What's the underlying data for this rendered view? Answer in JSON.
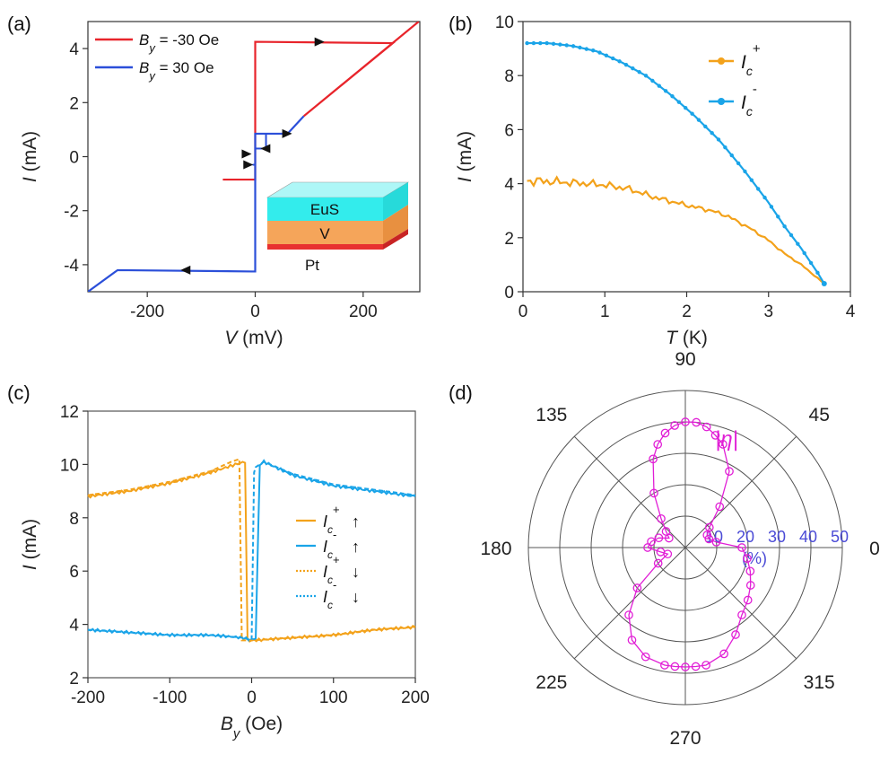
{
  "colors": {
    "red": "#e8242b",
    "blue": "#2b4fd9",
    "orange": "#f3a21b",
    "cyan": "#1aa4e8",
    "magenta": "#e11fd6",
    "polar_label": "#4b4bd6",
    "eus": "#33ecec",
    "v": "#f5a55a",
    "pt": "#e83030"
  },
  "chart_data": [
    {
      "panel": "(a)",
      "type": "line",
      "xlabel_italic": "V",
      "xlabel_rest": " (mV)",
      "ylabel": "I",
      "ylabel_unit": " (mA)",
      "xlim": [
        -310,
        305
      ],
      "ylim": [
        -5,
        5
      ],
      "xticks": [
        -200,
        0,
        200
      ],
      "yticks": [
        -4,
        -2,
        0,
        2,
        4
      ],
      "legend": [
        {
          "sym": "B",
          "sub": "y",
          "rest": " = -30 Oe"
        },
        {
          "sym": "B",
          "sub": "y",
          "rest": " = 30 Oe"
        }
      ],
      "series": [
        {
          "name": "By = -30 Oe",
          "color": "red",
          "x": [
            -60,
            -5,
            0,
            0,
            0,
            0,
            0,
            255,
            90,
            303
          ],
          "y": [
            -0.85,
            -0.85,
            -0.85,
            0.9,
            4.25,
            4.25,
            4.25,
            4.2,
            1.5,
            5.0
          ]
        },
        {
          "name": "By = 30 Oe",
          "color": "blue",
          "x": [
            -310,
            -255,
            -5,
            0,
            0,
            0,
            20,
            40,
            60,
            90
          ],
          "y": [
            -5.0,
            -4.2,
            -4.25,
            -4.25,
            -0.85,
            0.85,
            0.85,
            0.85,
            0.85,
            1.5
          ]
        }
      ],
      "inset_layers": [
        "EuS",
        "V",
        "Pt"
      ]
    },
    {
      "panel": "(b)",
      "type": "line",
      "xlabel_italic": "T",
      "xlabel_rest": " (K)",
      "ylabel": "I",
      "ylabel_unit": " (mA)",
      "xlim": [
        0,
        4
      ],
      "ylim": [
        0,
        10
      ],
      "xticks": [
        0,
        1,
        2,
        3,
        4
      ],
      "yticks": [
        0,
        2,
        4,
        6,
        8,
        10
      ],
      "series": [
        {
          "name": "Ic+",
          "sym": "I",
          "sub": "c",
          "sup": "+",
          "color": "orange",
          "x": [
            0.05,
            0.2,
            0.5,
            0.8,
            1.0,
            1.3,
            1.6,
            2.0,
            2.3,
            2.5,
            2.8,
            3.0,
            3.2,
            3.4,
            3.6,
            3.68
          ],
          "y": [
            4.1,
            4.1,
            4.05,
            4.0,
            3.95,
            3.8,
            3.5,
            3.2,
            3.0,
            2.8,
            2.3,
            1.9,
            1.4,
            1.0,
            0.5,
            0.3
          ]
        },
        {
          "name": "Ic-",
          "sym": "I",
          "sub": "c",
          "sup": "-",
          "color": "cyan",
          "x": [
            0.05,
            0.3,
            0.6,
            0.9,
            1.2,
            1.5,
            1.8,
            2.1,
            2.4,
            2.7,
            3.0,
            3.2,
            3.4,
            3.6,
            3.68
          ],
          "y": [
            9.2,
            9.2,
            9.1,
            8.9,
            8.5,
            8.0,
            7.3,
            6.5,
            5.6,
            4.5,
            3.3,
            2.4,
            1.6,
            0.7,
            0.3
          ]
        }
      ]
    },
    {
      "panel": "(c)",
      "type": "line",
      "xlabel_italic": "B",
      "xlabel_sub": "y",
      "xlabel_rest": " (Oe)",
      "ylabel": "I",
      "ylabel_unit": " (mA)",
      "xlim": [
        -200,
        200
      ],
      "ylim": [
        2,
        12
      ],
      "xticks": [
        -200,
        -100,
        0,
        100,
        200
      ],
      "yticks": [
        2,
        4,
        6,
        8,
        10,
        12
      ],
      "legend": [
        {
          "sym": "I",
          "sub": "c",
          "sup": "+",
          "arrow": "↑",
          "color": "orange",
          "dash": false
        },
        {
          "sym": "I",
          "sub": "c",
          "sup": "-",
          "arrow": "↑",
          "color": "cyan",
          "dash": false
        },
        {
          "sym": "I",
          "sub": "c",
          "sup": "+",
          "arrow": "↓",
          "color": "orange",
          "dash": true
        },
        {
          "sym": "I",
          "sub": "c",
          "sup": "-",
          "arrow": "↓",
          "color": "cyan",
          "dash": true
        }
      ],
      "series": [
        {
          "name": "Ic+ up",
          "color": "orange",
          "dash": false,
          "x": [
            -200,
            -150,
            -100,
            -50,
            -20,
            -8,
            -5,
            0,
            50,
            100,
            150,
            200
          ],
          "y": [
            8.8,
            9.0,
            9.3,
            9.7,
            10.0,
            10.1,
            3.4,
            3.4,
            3.5,
            3.6,
            3.8,
            3.9
          ]
        },
        {
          "name": "Ic- up",
          "color": "cyan",
          "dash": false,
          "x": [
            -200,
            -150,
            -100,
            -50,
            -10,
            0,
            5,
            10,
            15,
            50,
            100,
            150,
            200
          ],
          "y": [
            3.8,
            3.7,
            3.6,
            3.6,
            3.5,
            3.4,
            3.5,
            10.0,
            10.1,
            9.6,
            9.2,
            9.0,
            8.8
          ]
        },
        {
          "name": "Ic+ down",
          "color": "orange",
          "dash": true,
          "x": [
            -200,
            -150,
            -100,
            -50,
            -25,
            -15,
            -12,
            0,
            50,
            100,
            150,
            200
          ],
          "y": [
            8.85,
            9.05,
            9.35,
            9.75,
            10.1,
            10.2,
            3.4,
            3.4,
            3.5,
            3.6,
            3.8,
            3.9
          ]
        },
        {
          "name": "Ic- down",
          "color": "cyan",
          "dash": true,
          "x": [
            -200,
            -150,
            -100,
            -50,
            -10,
            0,
            3,
            5,
            15,
            50,
            100,
            150,
            200
          ],
          "y": [
            3.8,
            3.7,
            3.6,
            3.6,
            3.5,
            3.4,
            9.7,
            9.9,
            10.1,
            9.65,
            9.25,
            9.05,
            8.85
          ]
        }
      ]
    },
    {
      "panel": "(d)",
      "type": "polar",
      "series_label": "|η|",
      "unit_label": "(%)",
      "rlim": [
        0,
        50
      ],
      "rticks": [
        10,
        20,
        30,
        40,
        50
      ],
      "angle_labels": [
        "0",
        "45",
        "90",
        "135",
        "180",
        "225",
        "270",
        "315"
      ],
      "angles": [
        0,
        10,
        20,
        30,
        40,
        50,
        60,
        70,
        75,
        80,
        85,
        90,
        95,
        100,
        105,
        110,
        120,
        130,
        140,
        150,
        160,
        170,
        180,
        190,
        200,
        210,
        220,
        230,
        240,
        250,
        260,
        265,
        270,
        275,
        280,
        290,
        300,
        310,
        320,
        330,
        340,
        350
      ],
      "values": [
        18,
        10,
        8,
        8,
        10,
        17,
        28,
        35,
        37,
        39,
        40,
        40,
        39,
        37,
        34,
        30,
        20,
        12,
        8,
        6,
        9,
        11,
        12,
        8,
        6,
        10,
        20,
        28,
        34,
        37,
        38,
        38,
        38,
        38,
        38,
        36,
        32,
        28,
        26,
        24,
        22,
        20
      ]
    }
  ],
  "panel_labels": [
    "(a)",
    "(b)",
    "(c)",
    "(d)"
  ]
}
